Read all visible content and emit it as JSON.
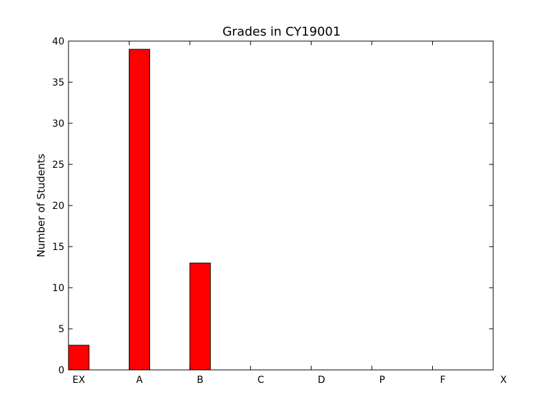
{
  "chart_data": {
    "type": "bar",
    "title": "Grades in CY19001",
    "xlabel": "",
    "ylabel": "Number of Students",
    "categories": [
      "EX",
      "A",
      "B",
      "C",
      "D",
      "P",
      "F",
      "X"
    ],
    "values": [
      3,
      39,
      13,
      0,
      0,
      0,
      0,
      0
    ],
    "ylim": [
      0,
      40
    ],
    "yticks": [
      0,
      5,
      10,
      15,
      20,
      25,
      30,
      35,
      40
    ],
    "ytick_labels": [
      "0",
      "5",
      "10",
      "15",
      "20",
      "25",
      "30",
      "35",
      "40"
    ],
    "bar_color": "#ff0000",
    "edge_color": "#000000",
    "grid": false,
    "legend": "none"
  }
}
